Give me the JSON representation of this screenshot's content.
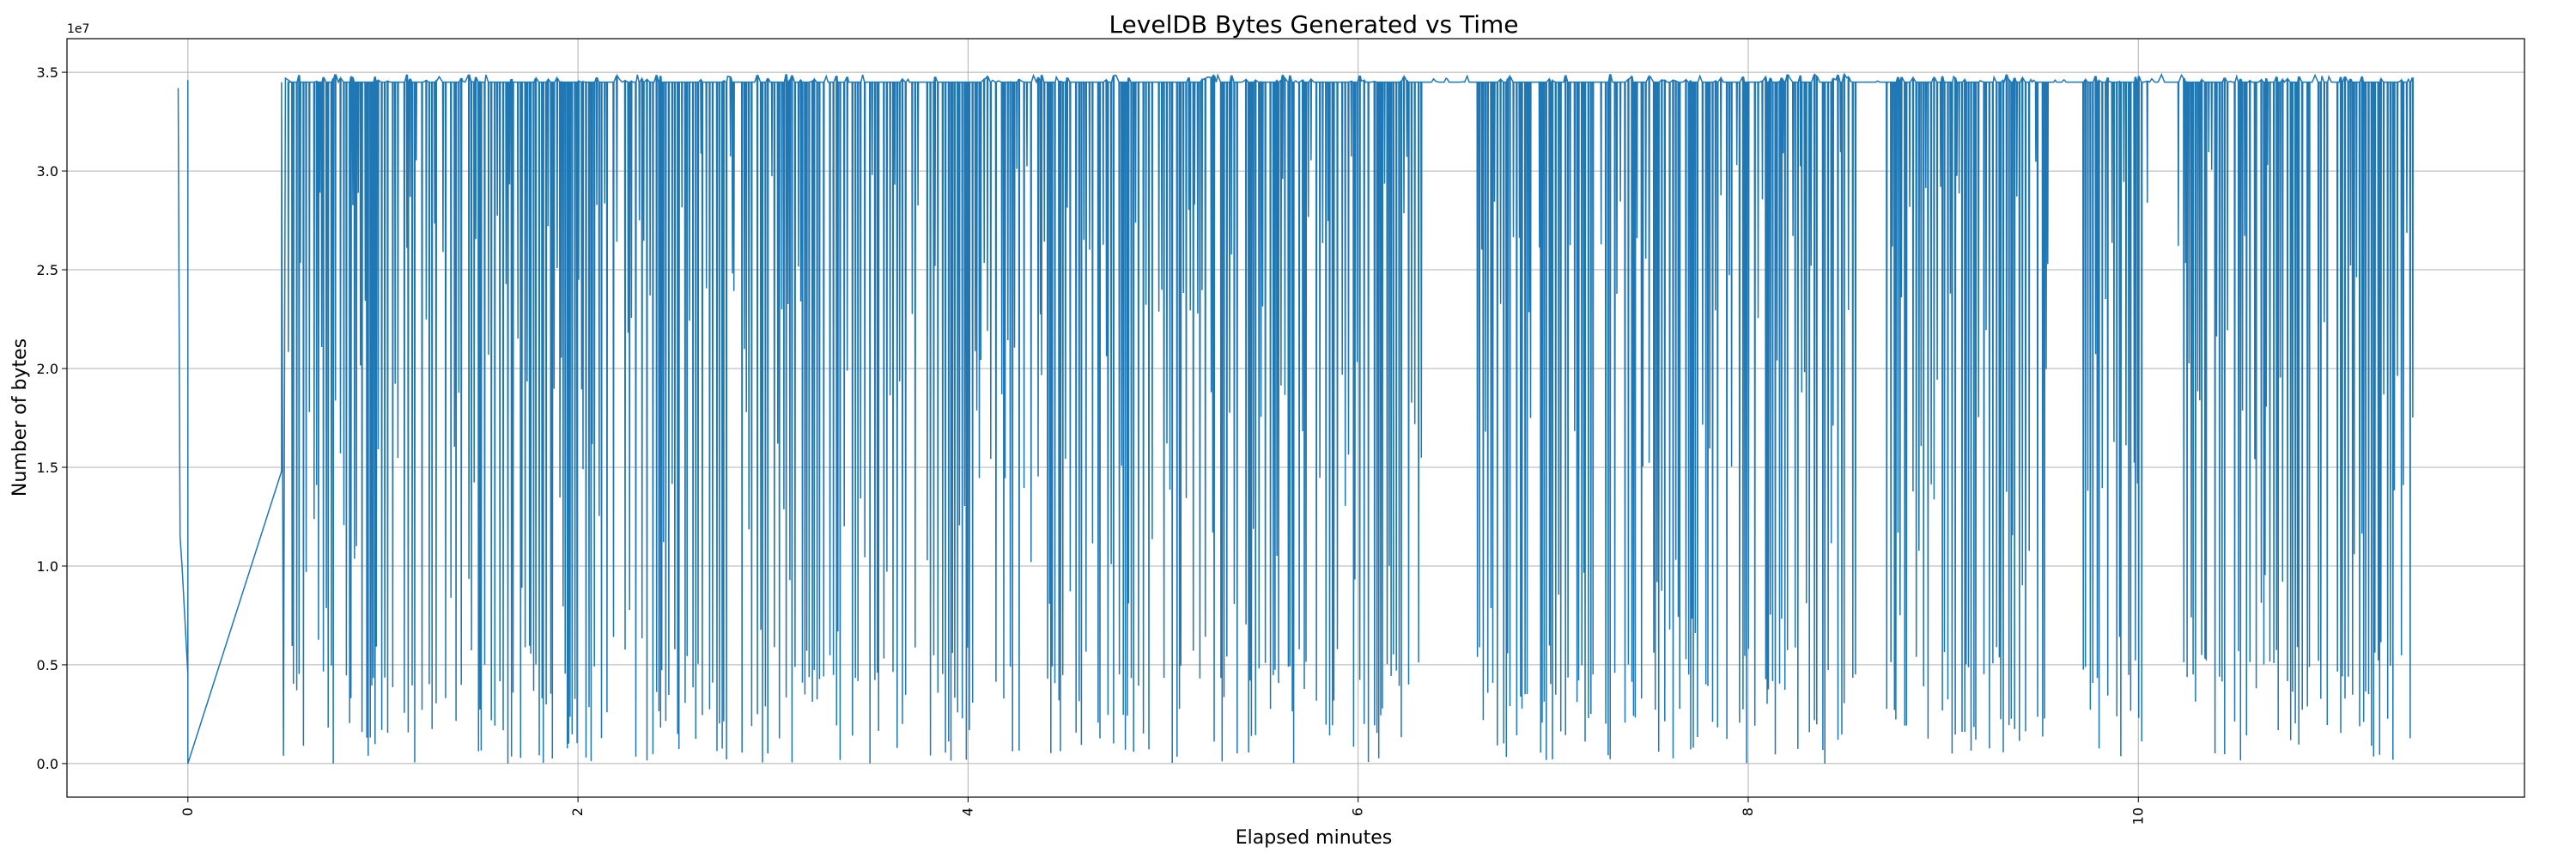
{
  "chart_data": {
    "type": "line",
    "title": "LevelDB Bytes Generated vs Time",
    "xlabel": "Elapsed minutes",
    "ylabel": "Number of bytes",
    "offset_label": "1e7",
    "xlim": [
      -0.62,
      11.98
    ],
    "ylim": [
      -1700000,
      36700000
    ],
    "x_ticks": [
      0,
      2,
      4,
      6,
      8,
      10
    ],
    "x_tick_labels": [
      "0",
      "2",
      "4",
      "6",
      "8",
      "10"
    ],
    "y_ticks": [
      0,
      5000000,
      10000000,
      15000000,
      20000000,
      25000000,
      30000000,
      35000000
    ],
    "y_tick_labels": [
      "0.0",
      "0.5",
      "1.0",
      "1.5",
      "2.0",
      "2.5",
      "3.0",
      "3.5"
    ],
    "grid": true,
    "series": [
      {
        "name": "bytes generated",
        "color": "#1f77b4",
        "baseline": 34500000,
        "x": [
          -0.05,
          -0.04,
          -0.03,
          0.0,
          0.0,
          0.0,
          0.0,
          0.48,
          0.48,
          0.49,
          0.5,
          0.53
        ],
        "y": [
          34200000,
          11500000,
          10000000,
          4500000,
          0,
          34600000,
          0,
          14800000,
          34500000,
          400000,
          34700000,
          34500000
        ],
        "dense_region": {
          "start": 0.5,
          "end": 11.4,
          "min": 0,
          "max": 34900000
        }
      }
    ]
  }
}
